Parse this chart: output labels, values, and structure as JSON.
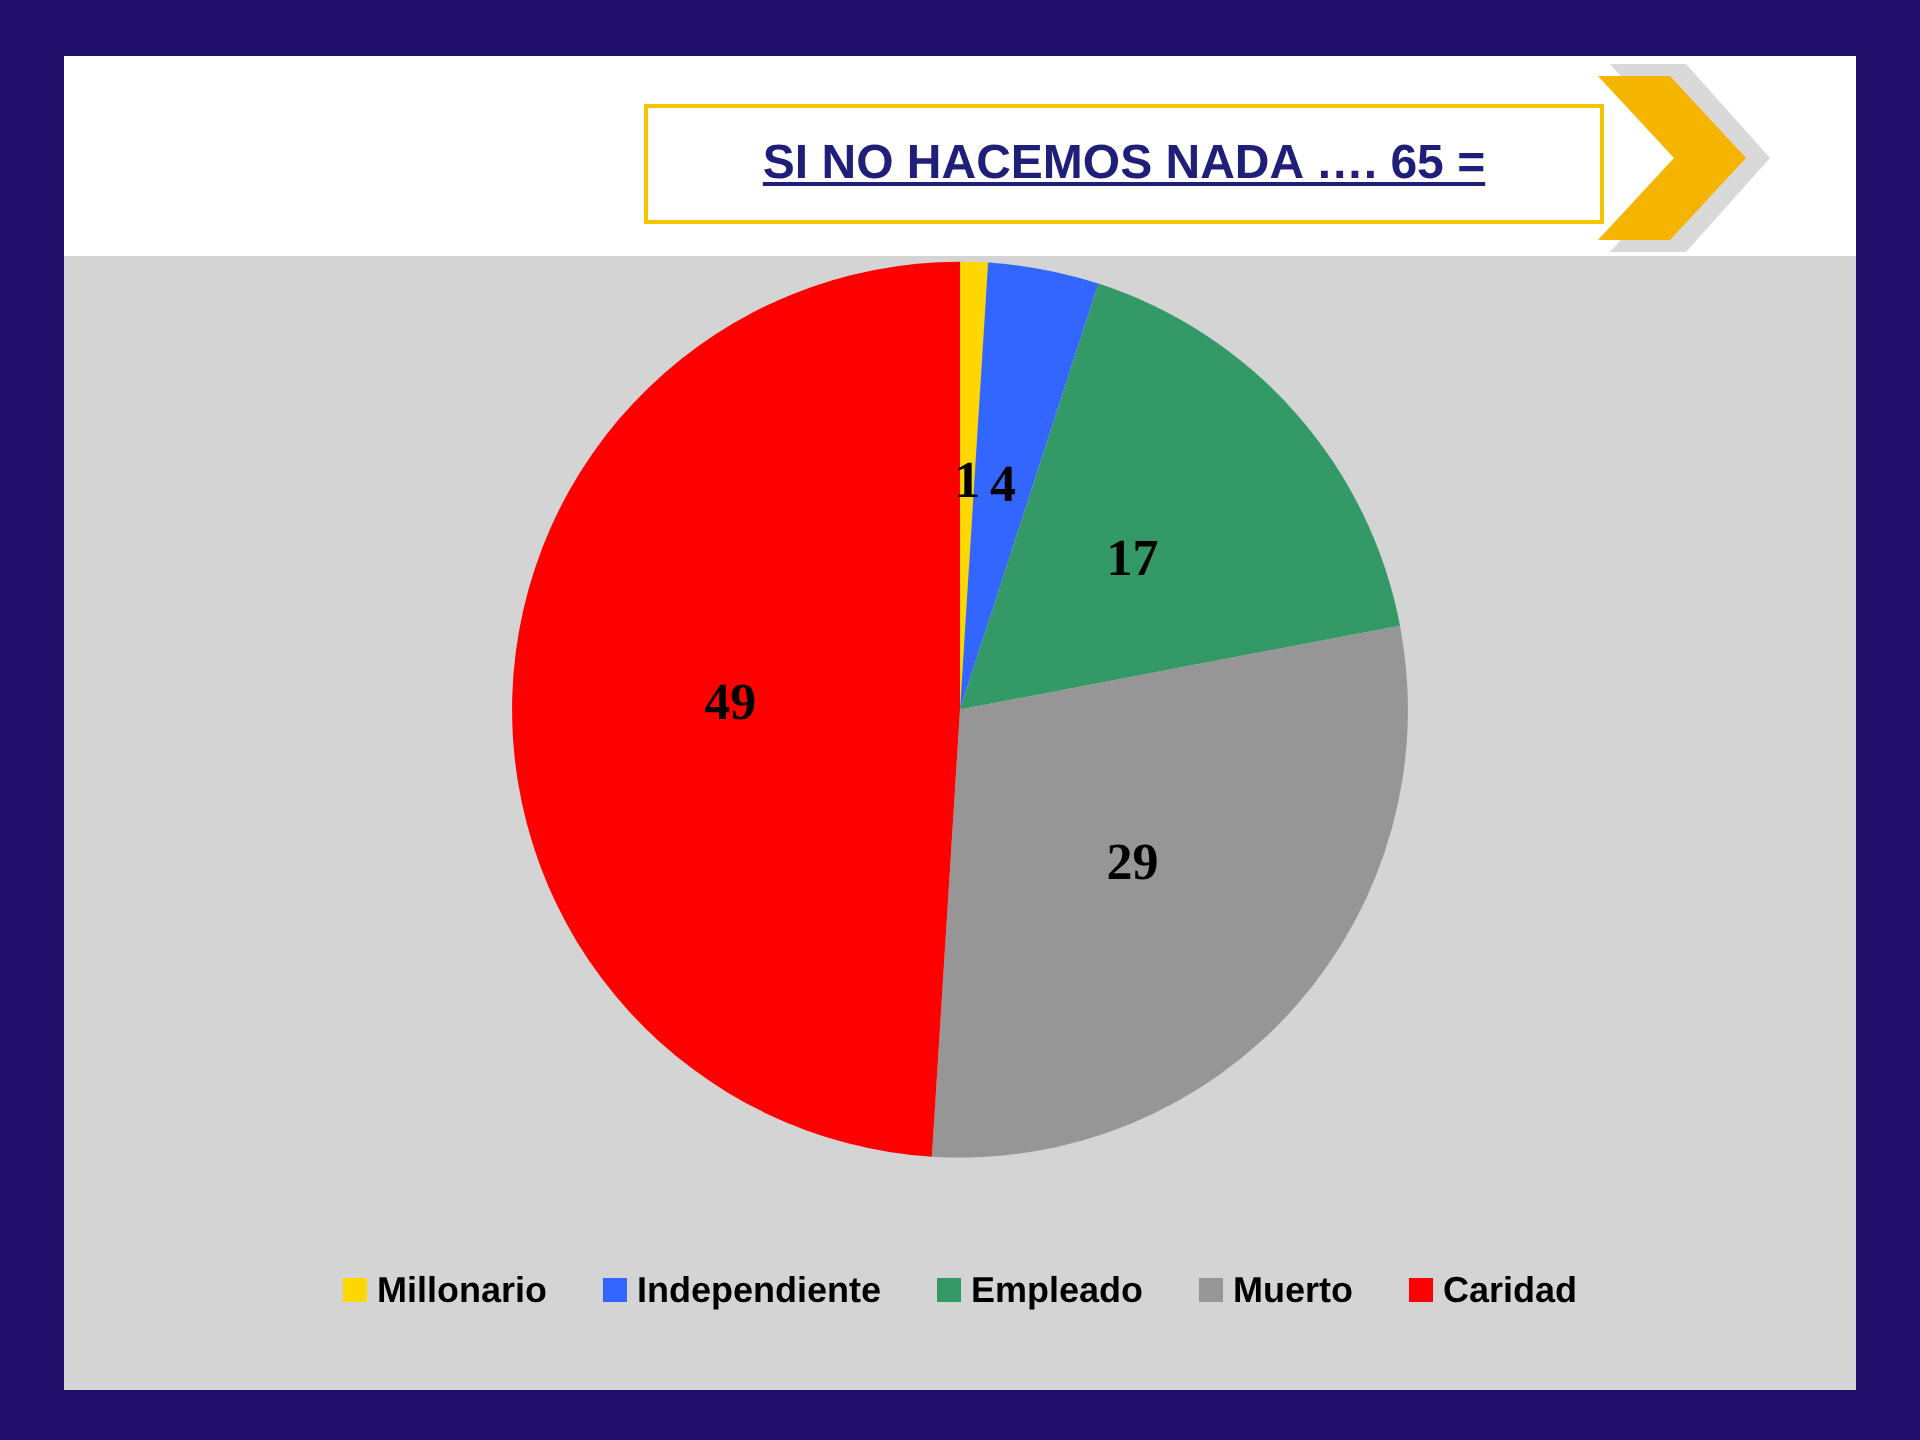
{
  "chart_data": {
    "type": "pie",
    "title": "SI NO HACEMOS NADA …. 65 =",
    "categories": [
      "Millonario",
      "Independiente",
      "Empleado",
      "Muerto",
      "Caridad"
    ],
    "values": [
      1,
      4,
      17,
      29,
      49
    ],
    "colors": [
      "#ffd700",
      "#3366ff",
      "#339966",
      "#969696",
      "#ff0000"
    ],
    "data_labels": true,
    "legend": "bottom"
  }
}
